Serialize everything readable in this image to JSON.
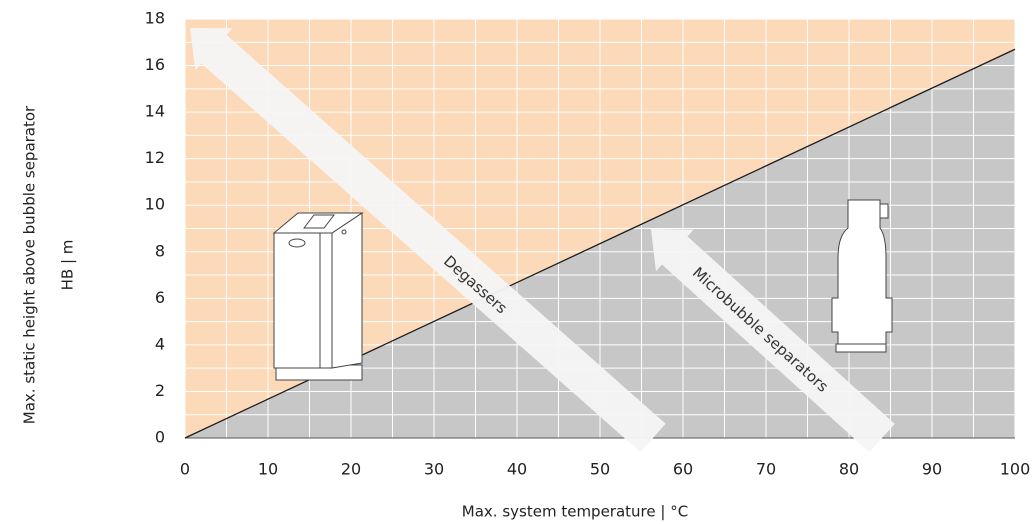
{
  "chart_data": {
    "type": "line",
    "x_label": "Max. system temperature | °C",
    "y_label": "Max. static height above bubble separator",
    "y_unit_label": "HB | m",
    "x": [
      0,
      100
    ],
    "series": [
      {
        "color": "#1e1e1e",
        "values": [
          0,
          16.7
        ]
      }
    ],
    "fill_above": "#fcd9b8",
    "fill_below": "#c7c7c7",
    "xlim": [
      0,
      100
    ],
    "ylim": [
      0,
      18
    ],
    "xticks": [
      0,
      10,
      20,
      30,
      40,
      50,
      60,
      70,
      80,
      90,
      100
    ],
    "yticks": [
      0,
      2,
      4,
      6,
      8,
      10,
      12,
      14,
      16,
      18
    ],
    "xminor": [
      5,
      15,
      25,
      35,
      45,
      55,
      65,
      75,
      85,
      95
    ],
    "yminor": [
      1,
      3,
      5,
      7,
      9,
      11,
      13,
      15,
      17
    ],
    "grid": true,
    "grid_color": "#ffffff",
    "annotations": [
      "Degassers",
      "Microbubble separators"
    ]
  }
}
